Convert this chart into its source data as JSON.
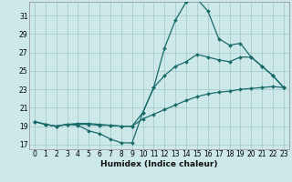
{
  "xlabel": "Humidex (Indice chaleur)",
  "background_color": "#cce8e8",
  "grid_color": "#aacccc",
  "line_color": "#1a6b6b",
  "xlim": [
    -0.5,
    23.5
  ],
  "ylim": [
    16.5,
    32.5
  ],
  "xticks": [
    0,
    1,
    2,
    3,
    4,
    5,
    6,
    7,
    8,
    9,
    10,
    11,
    12,
    13,
    14,
    15,
    16,
    17,
    18,
    19,
    20,
    21,
    22,
    23
  ],
  "yticks": [
    17,
    19,
    21,
    23,
    25,
    27,
    29,
    31
  ],
  "line1_x": [
    0,
    1,
    2,
    3,
    4,
    5,
    6,
    7,
    8,
    9,
    10,
    11,
    12,
    13,
    14,
    15,
    16,
    17,
    18,
    19,
    20,
    21,
    22,
    23
  ],
  "line1_y": [
    19.5,
    19.2,
    19.0,
    19.2,
    19.1,
    18.5,
    18.2,
    17.6,
    17.2,
    17.2,
    20.5,
    23.2,
    27.5,
    30.5,
    32.5,
    32.8,
    31.5,
    28.5,
    27.8,
    28.0,
    26.5,
    25.5,
    24.5,
    23.2
  ],
  "line2_x": [
    0,
    1,
    2,
    3,
    4,
    5,
    6,
    7,
    8,
    9,
    10,
    11,
    12,
    13,
    14,
    15,
    16,
    17,
    18,
    19,
    20,
    21,
    22,
    23
  ],
  "line2_y": [
    19.5,
    19.2,
    19.0,
    19.2,
    19.3,
    19.3,
    19.2,
    19.1,
    19.0,
    19.0,
    20.5,
    23.2,
    24.5,
    25.5,
    26.0,
    26.8,
    26.5,
    26.2,
    26.0,
    26.5,
    26.5,
    25.5,
    24.5,
    23.2
  ],
  "line3_x": [
    0,
    1,
    2,
    3,
    4,
    5,
    6,
    7,
    8,
    9,
    10,
    11,
    12,
    13,
    14,
    15,
    16,
    17,
    18,
    19,
    20,
    21,
    22,
    23
  ],
  "line3_y": [
    19.5,
    19.2,
    19.0,
    19.2,
    19.2,
    19.2,
    19.1,
    19.1,
    19.0,
    19.0,
    19.8,
    20.3,
    20.8,
    21.3,
    21.8,
    22.2,
    22.5,
    22.7,
    22.8,
    23.0,
    23.1,
    23.2,
    23.3,
    23.2
  ]
}
